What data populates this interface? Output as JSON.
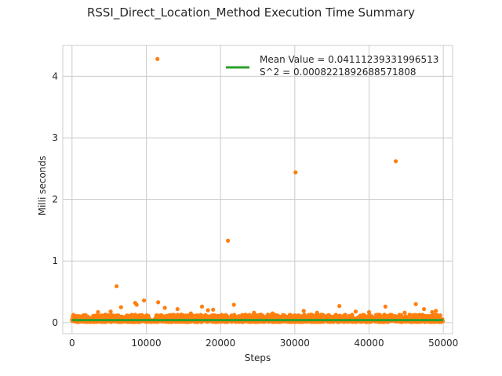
{
  "chart_data": {
    "type": "scatter",
    "title": "RSSI_Direct_Location_Method Execution Time Summary",
    "xlabel": "Steps",
    "ylabel": "Milli seconds",
    "xlim": [
      -1250,
      51250
    ],
    "ylim": [
      -0.18,
      4.5
    ],
    "xticks": [
      0,
      10000,
      20000,
      30000,
      40000,
      50000
    ],
    "yticks": [
      0,
      1,
      2,
      3,
      4
    ],
    "grid": true,
    "legend_position": "top-right",
    "colors": {
      "scatter": "#ff7f0e",
      "mean_line": "#2ca02c",
      "grid": "#cccccc",
      "axes": "#cccccc"
    },
    "series": [
      {
        "name": "Mean Value = 0.04111239331996513",
        "type": "line",
        "x": [
          0,
          50000
        ],
        "y": [
          0.0411,
          0.0411
        ]
      },
      {
        "type": "scatter",
        "note_band": {
          "x_start": 0,
          "x_end": 50000,
          "y_min": 0.01,
          "y_max": 0.13
        },
        "outliers": {
          "x": [
            11500,
            6000,
            9700,
            8500,
            8700,
            6600,
            11600,
            12500,
            14200,
            17500,
            18300,
            19000,
            21000,
            21800,
            30100,
            31200,
            36000,
            38200,
            42200,
            43600,
            46300,
            47400,
            48500,
            49000,
            33000,
            3500,
            5200,
            16000,
            24500,
            27000,
            40000,
            44800
          ],
          "y": [
            4.28,
            0.59,
            0.36,
            0.32,
            0.29,
            0.25,
            0.33,
            0.24,
            0.22,
            0.26,
            0.2,
            0.21,
            1.33,
            0.29,
            2.44,
            0.19,
            0.27,
            0.18,
            0.26,
            2.62,
            0.3,
            0.22,
            0.17,
            0.19,
            0.16,
            0.17,
            0.18,
            0.15,
            0.16,
            0.15,
            0.17,
            0.16
          ]
        }
      }
    ],
    "legend": {
      "line1": "Mean Value = 0.04111239331996513",
      "line2": "S^2 = 0.0008221892688571808"
    }
  }
}
